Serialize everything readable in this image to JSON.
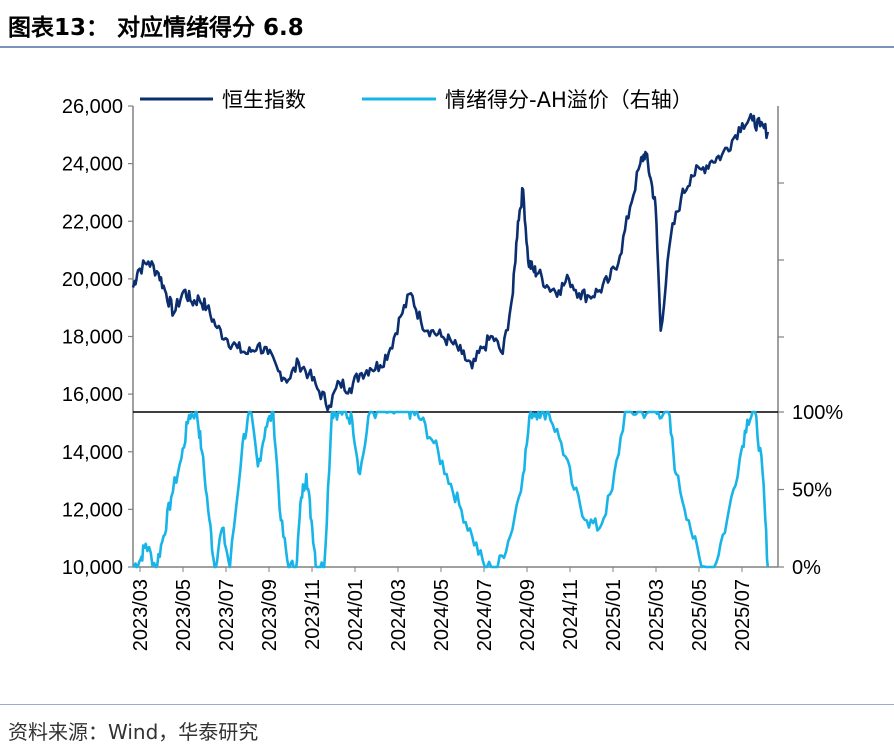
{
  "title": "图表13：  对应情绪得分 6.8",
  "source": "资料来源：Wind，华泰研究",
  "colors": {
    "hsi": "#0b2e6f",
    "sentiment": "#18b4e8",
    "rule": "#7a93b8"
  },
  "chart_data": {
    "type": "line",
    "title": "对应情绪得分 6.8",
    "left_axis": {
      "ylim": [
        10000,
        26000
      ],
      "ticks": [
        "26,000",
        "24,000",
        "22,000",
        "20,000",
        "18,000",
        "16,000",
        "14,000",
        "12,000",
        "10,000"
      ]
    },
    "right_axis": {
      "ylim": [
        0,
        100
      ],
      "ticks": [
        "100%",
        "50%",
        "0%"
      ]
    },
    "x_ticks": [
      "2023/03",
      "2023/05",
      "2023/07",
      "2023/09",
      "2023/11",
      "2024/01",
      "2024/03",
      "2024/05",
      "2024/07",
      "2024/09",
      "2024/11",
      "2025/01",
      "2025/03",
      "2025/05",
      "2025/07"
    ],
    "legend": [
      "恒生指数",
      "情绪得分-AH溢价（右轴）"
    ],
    "series": [
      {
        "name": "恒生指数",
        "axis": "left",
        "x": [
          2023.17,
          2023.19,
          2023.23,
          2023.27,
          2023.3,
          2023.33,
          2023.37,
          2023.4,
          2023.43,
          2023.46,
          2023.5,
          2023.54,
          2023.58,
          2023.62,
          2023.66,
          2023.7,
          2023.74,
          2023.78,
          2023.82,
          2023.86,
          2023.9,
          2023.94,
          2023.98,
          2024.02,
          2024.06,
          2024.1,
          2024.14,
          2024.18,
          2024.22,
          2024.26,
          2024.3,
          2024.34,
          2024.38,
          2024.42,
          2024.46,
          2024.5,
          2024.54,
          2024.58,
          2024.62,
          2024.66,
          2024.68,
          2024.7,
          2024.72,
          2024.74,
          2024.76,
          2024.8,
          2024.84,
          2024.88,
          2024.92,
          2024.96,
          2025.0,
          2025.04,
          2025.08,
          2025.12,
          2025.16,
          2025.18,
          2025.2,
          2025.22,
          2025.24,
          2025.28,
          2025.32,
          2025.36,
          2025.4,
          2025.44,
          2025.48,
          2025.52,
          2025.56,
          2025.6,
          2025.63,
          2025.66
        ],
        "values": [
          19700,
          20300,
          20600,
          20200,
          19500,
          18800,
          19600,
          19200,
          19300,
          19000,
          18300,
          17900,
          17600,
          17400,
          17700,
          17400,
          16800,
          16500,
          17100,
          16700,
          16100,
          15600,
          16400,
          16200,
          16700,
          16900,
          17000,
          17600,
          18700,
          19500,
          18500,
          18200,
          18000,
          17800,
          17400,
          16900,
          17600,
          18000,
          17400,
          19500,
          22000,
          23100,
          20600,
          20300,
          20200,
          19700,
          19600,
          20000,
          19500,
          19400,
          19600,
          20000,
          20800,
          22500,
          24000,
          24400,
          23500,
          22500,
          18200,
          21500,
          22800,
          23600,
          23800,
          24100,
          24300,
          24800,
          25400,
          25500,
          25300,
          25100
        ]
      },
      {
        "name": "情绪得分-AH溢价（右轴）",
        "axis": "right",
        "x": [
          2023.17,
          2023.2,
          2023.22,
          2023.26,
          2023.29,
          2023.32,
          2023.36,
          2023.39,
          2023.42,
          2023.44,
          2023.47,
          2023.49,
          2023.52,
          2023.55,
          2023.6,
          2023.63,
          2023.66,
          2023.69,
          2023.72,
          2023.75,
          2023.78,
          2023.81,
          2023.83,
          2023.85,
          2023.87,
          2023.89,
          2023.92,
          2023.95,
          2023.98,
          2024.0,
          2024.03,
          2024.06,
          2024.1,
          2024.14,
          2024.18,
          2024.22,
          2024.25,
          2024.27,
          2024.3,
          2024.35,
          2024.4,
          2024.45,
          2024.5,
          2024.55,
          2024.6,
          2024.65,
          2024.7,
          2024.73,
          2024.76,
          2024.8,
          2024.85,
          2024.9,
          2024.95,
          2025.0,
          2025.05,
          2025.1,
          2025.15,
          2025.2,
          2025.23,
          2025.27,
          2025.3,
          2025.35,
          2025.4,
          2025.45,
          2025.5,
          2025.55,
          2025.58,
          2025.61,
          2025.64,
          2025.66
        ],
        "values": [
          0,
          5,
          15,
          0,
          20,
          45,
          70,
          98,
          100,
          75,
          30,
          0,
          25,
          0,
          80,
          100,
          65,
          90,
          100,
          30,
          0,
          0,
          45,
          60,
          30,
          0,
          0,
          100,
          100,
          100,
          95,
          60,
          100,
          100,
          100,
          100,
          100,
          100,
          95,
          80,
          60,
          40,
          20,
          0,
          0,
          20,
          60,
          100,
          100,
          100,
          80,
          50,
          30,
          25,
          50,
          100,
          100,
          100,
          100,
          100,
          60,
          30,
          0,
          0,
          30,
          70,
          95,
          100,
          60,
          0
        ]
      }
    ]
  }
}
